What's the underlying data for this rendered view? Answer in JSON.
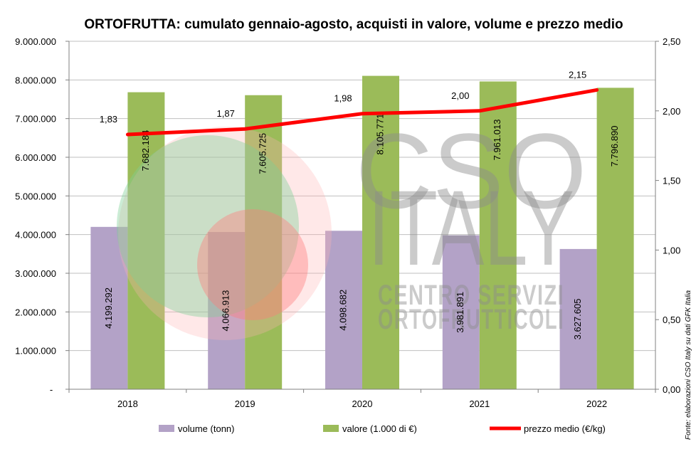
{
  "chart_data": {
    "type": "bar",
    "title": "ORTOFRUTTA: cumulato gennaio-agosto, acquisti in valore, volume e prezzo medio",
    "categories": [
      "2018",
      "2019",
      "2020",
      "2021",
      "2022"
    ],
    "series": [
      {
        "name": "volume (tonn)",
        "type": "bar",
        "axis": "left",
        "color": "#b3a2c7",
        "values": [
          4199292,
          4066913,
          4098682,
          3981891,
          3627605
        ],
        "labels": [
          "4.199.292",
          "4.066.913",
          "4.098.682",
          "3.981.891",
          "3.627.605"
        ]
      },
      {
        "name": "valore (1.000 di €)",
        "type": "bar",
        "axis": "left",
        "color": "#9bbb59",
        "values": [
          7682184,
          7605725,
          8105771,
          7961013,
          7796890
        ],
        "labels": [
          "7.682.184",
          "7.605.725",
          "8.105.771",
          "7.961.013",
          "7.796.890"
        ]
      },
      {
        "name": "prezzo medio (€/kg)",
        "type": "line",
        "axis": "right",
        "color": "#ff0000",
        "values": [
          1.83,
          1.87,
          1.98,
          2.0,
          2.15
        ],
        "labels": [
          "1,83",
          "1,87",
          "1,98",
          "2,00",
          "2,15"
        ]
      }
    ],
    "y_left": {
      "min": 0,
      "max": 9000000,
      "step": 1000000,
      "ticks": [
        "-",
        "1.000.000",
        "2.000.000",
        "3.000.000",
        "4.000.000",
        "5.000.000",
        "6.000.000",
        "7.000.000",
        "8.000.000",
        "9.000.000"
      ]
    },
    "y_right": {
      "min": 0,
      "max": 2.5,
      "step": 0.5,
      "ticks": [
        "0,00",
        "0,50",
        "1,00",
        "1,50",
        "2,00",
        "2,50"
      ]
    },
    "grid": "horizontal",
    "legend_position": "bottom"
  },
  "watermark": {
    "line1": "CSO",
    "line2": "ITALY",
    "line3": "CENTRO SERVIZI",
    "line4": "ORTOFRUTTICOLI"
  },
  "source": "Fonte: elaborazioni CSO Italy su dati GFK Italia"
}
